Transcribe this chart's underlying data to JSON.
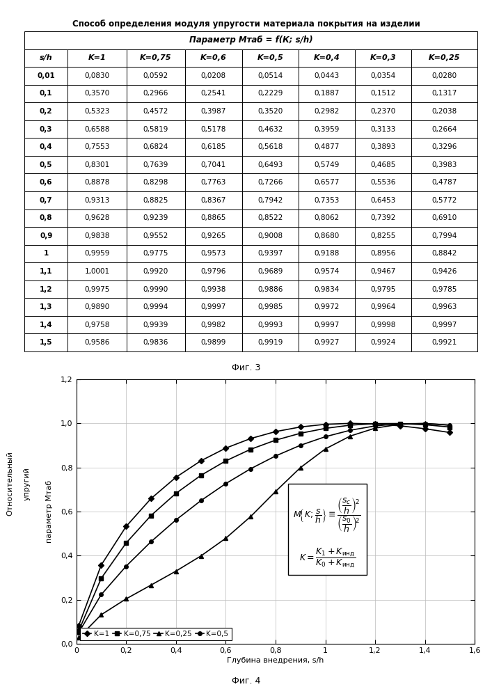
{
  "title": "Способ определения модуля упругости материала покрытия на изделии",
  "table_header": "Параметр Мтаб = f(К; s/h)",
  "col_headers": [
    "s/h",
    "K=1",
    "K=0,75",
    "K=0,6",
    "K=0,5",
    "K=0,4",
    "K=0,3",
    "K=0,25"
  ],
  "table_data": [
    [
      "0,01",
      "0,0830",
      "0,0592",
      "0,0208",
      "0,0514",
      "0,0443",
      "0,0354",
      "0,0280"
    ],
    [
      "0,1",
      "0,3570",
      "0,2966",
      "0,2541",
      "0,2229",
      "0,1887",
      "0,1512",
      "0,1317"
    ],
    [
      "0,2",
      "0,5323",
      "0,4572",
      "0,3987",
      "0,3520",
      "0,2982",
      "0,2370",
      "0,2038"
    ],
    [
      "0,3",
      "0,6588",
      "0,5819",
      "0,5178",
      "0,4632",
      "0,3959",
      "0,3133",
      "0,2664"
    ],
    [
      "0,4",
      "0,7553",
      "0,6824",
      "0,6185",
      "0,5618",
      "0,4877",
      "0,3893",
      "0,3296"
    ],
    [
      "0,5",
      "0,8301",
      "0,7639",
      "0,7041",
      "0,6493",
      "0,5749",
      "0,4685",
      "0,3983"
    ],
    [
      "0,6",
      "0,8878",
      "0,8298",
      "0,7763",
      "0,7266",
      "0,6577",
      "0,5536",
      "0,4787"
    ],
    [
      "0,7",
      "0,9313",
      "0,8825",
      "0,8367",
      "0,7942",
      "0,7353",
      "0,6453",
      "0,5772"
    ],
    [
      "0,8",
      "0,9628",
      "0,9239",
      "0,8865",
      "0,8522",
      "0,8062",
      "0,7392",
      "0,6910"
    ],
    [
      "0,9",
      "0,9838",
      "0,9552",
      "0,9265",
      "0,9008",
      "0,8680",
      "0,8255",
      "0,7994"
    ],
    [
      "1",
      "0,9959",
      "0,9775",
      "0,9573",
      "0,9397",
      "0,9188",
      "0,8956",
      "0,8842"
    ],
    [
      "1,1",
      "1,0001",
      "0,9920",
      "0,9796",
      "0,9689",
      "0,9574",
      "0,9467",
      "0,9426"
    ],
    [
      "1,2",
      "0,9975",
      "0,9990",
      "0,9938",
      "0,9886",
      "0,9834",
      "0,9795",
      "0,9785"
    ],
    [
      "1,3",
      "0,9890",
      "0,9994",
      "0,9997",
      "0,9985",
      "0,9972",
      "0,9964",
      "0,9963"
    ],
    [
      "1,4",
      "0,9758",
      "0,9939",
      "0,9982",
      "0,9993",
      "0,9997",
      "0,9998",
      "0,9997"
    ],
    [
      "1,5",
      "0,9586",
      "0,9836",
      "0,9899",
      "0,9919",
      "0,9927",
      "0,9924",
      "0,9921"
    ]
  ],
  "fig3_label": "Фиг. 3",
  "fig4_label": "Фиг. 4",
  "chart_xlabel": "Глубина внедрения, s/h",
  "chart_ylabel": "Относительный     упругий     параметр Мтаб",
  "chart_xlim": [
    0,
    1.6
  ],
  "chart_ylim": [
    0.0,
    1.2
  ],
  "chart_xticks": [
    0,
    0.2,
    0.4,
    0.6,
    0.8,
    1,
    1.2,
    1.4,
    1.6
  ],
  "chart_yticks": [
    0.0,
    0.2,
    0.4,
    0.6,
    0.8,
    1.0,
    1.2
  ],
  "series": [
    {
      "label": "K=1",
      "marker": "D",
      "color": "#000000",
      "x": [
        0.01,
        0.1,
        0.2,
        0.3,
        0.4,
        0.5,
        0.6,
        0.7,
        0.8,
        0.9,
        1.0,
        1.1,
        1.2,
        1.3,
        1.4,
        1.5
      ],
      "y": [
        0.083,
        0.357,
        0.5323,
        0.6588,
        0.7553,
        0.8301,
        0.8878,
        0.9313,
        0.9628,
        0.9838,
        0.9959,
        1.0001,
        0.9975,
        0.989,
        0.9758,
        0.9586
      ]
    },
    {
      "label": "K=0,75",
      "marker": "s",
      "color": "#000000",
      "x": [
        0.01,
        0.1,
        0.2,
        0.3,
        0.4,
        0.5,
        0.6,
        0.7,
        0.8,
        0.9,
        1.0,
        1.1,
        1.2,
        1.3,
        1.4,
        1.5
      ],
      "y": [
        0.0592,
        0.2966,
        0.4572,
        0.5819,
        0.6824,
        0.7639,
        0.8298,
        0.8825,
        0.9239,
        0.9552,
        0.9775,
        0.992,
        0.999,
        0.9994,
        0.9939,
        0.9836
      ]
    },
    {
      "label": "K=0,25",
      "marker": "^",
      "color": "#000000",
      "x": [
        0.01,
        0.1,
        0.2,
        0.3,
        0.4,
        0.5,
        0.6,
        0.7,
        0.8,
        0.9,
        1.0,
        1.1,
        1.2,
        1.3,
        1.4,
        1.5
      ],
      "y": [
        0.028,
        0.1317,
        0.2038,
        0.2664,
        0.3296,
        0.3983,
        0.4787,
        0.5772,
        0.691,
        0.7994,
        0.8842,
        0.9426,
        0.9785,
        0.9963,
        0.9997,
        0.9921
      ]
    },
    {
      "label": "K=0,5",
      "marker": "o",
      "color": "#000000",
      "x": [
        0.01,
        0.1,
        0.2,
        0.3,
        0.4,
        0.5,
        0.6,
        0.7,
        0.8,
        0.9,
        1.0,
        1.1,
        1.2,
        1.3,
        1.4,
        1.5
      ],
      "y": [
        0.0514,
        0.2229,
        0.352,
        0.4632,
        0.5618,
        0.6493,
        0.7266,
        0.7942,
        0.8522,
        0.9008,
        0.9397,
        0.9689,
        0.9886,
        0.9985,
        0.9993,
        0.9919
      ]
    }
  ]
}
